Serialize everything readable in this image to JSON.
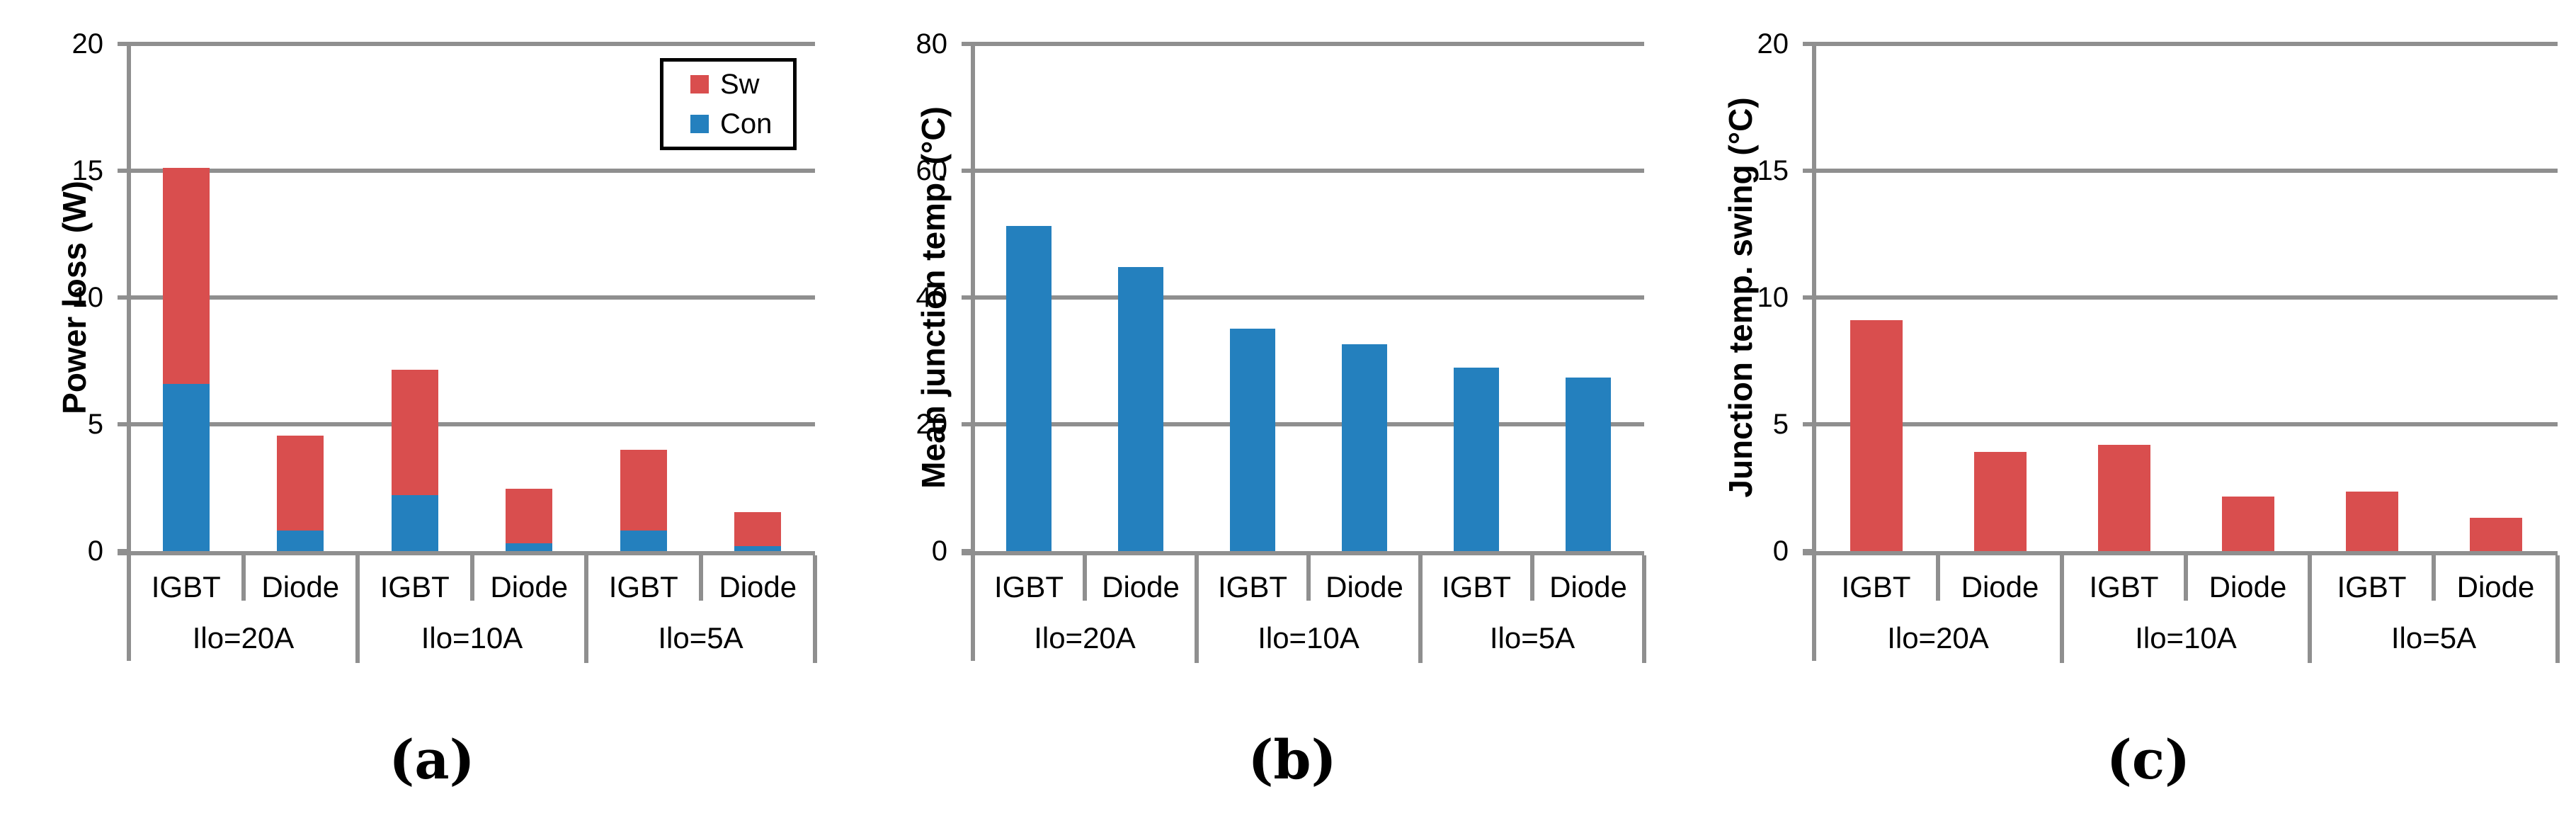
{
  "figure": {
    "captions": [
      "(a)",
      "(b)",
      "(c)"
    ]
  },
  "colors": {
    "sw_red": "#D94E4E",
    "con_blue": "#2480BE",
    "axis_gray": "#8F8F8F",
    "text_black": "#000000",
    "legend_border": "#000000"
  },
  "chart_data": [
    {
      "id": "a",
      "type": "bar",
      "stacked": true,
      "ylabel": "Power loss (W)",
      "ylim": [
        0,
        20
      ],
      "yticks": [
        0,
        5,
        10,
        15,
        20
      ],
      "grid": true,
      "categories": [
        "IGBT",
        "Diode",
        "IGBT",
        "Diode",
        "IGBT",
        "Diode"
      ],
      "group_labels": [
        "Ilo=20A",
        "Ilo=10A",
        "Ilo=5A"
      ],
      "series": [
        {
          "name": "Con",
          "color": "#2480BE",
          "values": [
            6.6,
            0.8,
            2.2,
            0.3,
            0.8,
            0.2
          ]
        },
        {
          "name": "Sw",
          "color": "#D94E4E",
          "values": [
            8.5,
            3.75,
            4.95,
            2.15,
            3.2,
            1.35
          ]
        }
      ],
      "legend": {
        "position": "top-right",
        "entries": [
          {
            "label": "Sw",
            "color": "#D94E4E"
          },
          {
            "label": "Con",
            "color": "#2480BE"
          }
        ]
      }
    },
    {
      "id": "b",
      "type": "bar",
      "stacked": false,
      "ylabel": "Mean junction temp. (°C)",
      "ylim": [
        0,
        80
      ],
      "yticks": [
        0,
        20,
        40,
        60,
        80
      ],
      "grid": true,
      "categories": [
        "IGBT",
        "Diode",
        "IGBT",
        "Diode",
        "IGBT",
        "Diode"
      ],
      "group_labels": [
        "Ilo=20A",
        "Ilo=10A",
        "Ilo=5A"
      ],
      "series": [
        {
          "name": "",
          "color": "#2480BE",
          "values": [
            51.3,
            44.8,
            35.1,
            32.6,
            28.9,
            27.4
          ]
        }
      ],
      "legend": null
    },
    {
      "id": "c",
      "type": "bar",
      "stacked": false,
      "ylabel": "Junction temp. swing (°C)",
      "ylim": [
        0,
        20
      ],
      "yticks": [
        0,
        5,
        10,
        15,
        20
      ],
      "grid": true,
      "categories": [
        "IGBT",
        "Diode",
        "IGBT",
        "Diode",
        "IGBT",
        "Diode"
      ],
      "group_labels": [
        "Ilo=20A",
        "Ilo=10A",
        "Ilo=5A"
      ],
      "series": [
        {
          "name": "",
          "color": "#D94E4E",
          "values": [
            9.1,
            3.9,
            4.2,
            2.15,
            2.35,
            1.3
          ]
        }
      ],
      "legend": null
    }
  ]
}
